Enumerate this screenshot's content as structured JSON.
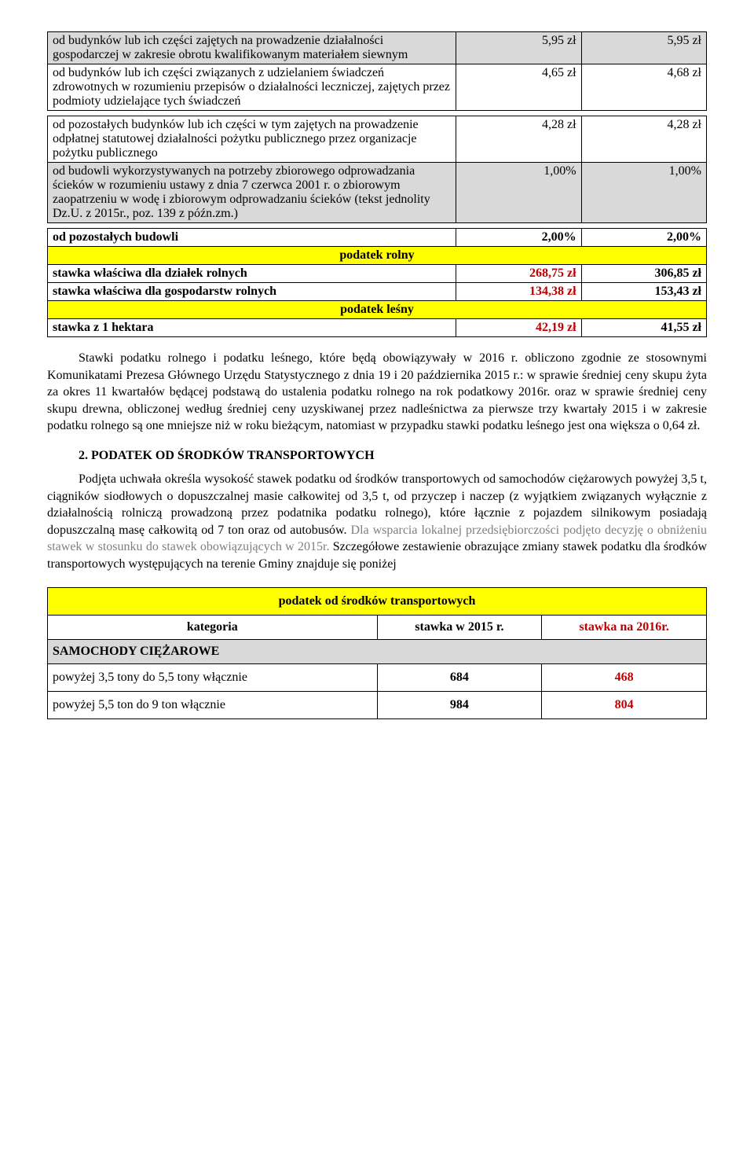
{
  "taxTable": {
    "rows": [
      {
        "label": "od budynków lub ich części zajętych na prowadzenie działalności gospodarczej w zakresie obrotu kwalifikowanym materiałem siewnym",
        "v1": "5,95 zł",
        "v2": "5,95 zł",
        "shaded": true
      },
      {
        "label": "od budynków lub ich części związanych z udzielaniem świadczeń zdrowotnych w rozumieniu przepisów o działalności leczniczej, zajętych przez podmioty udzielające tych świadczeń",
        "v1": "4,65 zł",
        "v2": "4,68 zł",
        "shaded": false
      },
      {
        "type": "spacer"
      },
      {
        "label": "od pozostałych budynków lub ich części w tym zajętych na prowadzenie odpłatnej statutowej działalności pożytku publicznego przez organizacje pożytku publicznego",
        "v1": "4,28 zł",
        "v2": "4,28 zł",
        "shaded": false
      },
      {
        "label": "od budowli wykorzystywanych na potrzeby zbiorowego odprowadzania ścieków w rozumieniu ustawy z dnia 7 czerwca 2001 r. o zbiorowym zaopatrzeniu w wodę i zbiorowym odprowadzaniu ścieków (tekst jednolity Dz.U. z 2015r., poz. 139 z późn.zm.)",
        "v1": "1,00%",
        "v2": "1,00%",
        "shaded": true
      },
      {
        "type": "spacer"
      },
      {
        "label": "od pozostałych budowli",
        "v1": "2,00%",
        "v2": "2,00%",
        "shaded": false,
        "bold": true
      },
      {
        "type": "section",
        "title": "podatek rolny"
      },
      {
        "label": "stawka właściwa dla działek rolnych",
        "v1": "268,75 zł",
        "v2": "306,85 zł",
        "shaded": false,
        "bold": true,
        "v1red": true
      },
      {
        "label": "stawka właściwa dla gospodarstw rolnych",
        "v1": "134,38 zł",
        "v2": "153,43 zł",
        "shaded": false,
        "bold": true,
        "v1red": true
      },
      {
        "type": "section",
        "title": "podatek leśny"
      },
      {
        "label": "stawka z 1 hektara",
        "v1": "42,19 zł",
        "v2": "41,55 zł",
        "shaded": false,
        "bold": true,
        "v1red": true
      }
    ]
  },
  "paragraph1": "Stawki podatku rolnego i podatku leśnego, które będą obowiązywały w 2016 r. obliczono zgodnie ze stosownymi Komunikatami Prezesa Głównego Urzędu Statystycznego z dnia 19 i 20 października 2015 r.: w sprawie średniej ceny skupu żyta za okres 11 kwartałów będącej podstawą do ustalenia podatku rolnego na rok podatkowy 2016r. oraz w sprawie średniej ceny skupu drewna, obliczonej według średniej ceny uzyskiwanej przez nadleśnictwa za pierwsze trzy kwartały 2015 i w zakresie podatku rolnego są one mniejsze niż w roku bieżącym, natomiast w przypadku stawki podatku leśnego jest ona większa o 0,64 zł.",
  "heading2": "2. PODATEK OD ŚRODKÓW TRANSPORTOWYCH",
  "paragraph2_part1": "Podjęta uchwała określa wysokość stawek podatku od środków transportowych od samochodów ciężarowych powyżej 3,5 t, ciągników siodłowych o dopuszczalnej masie całkowitej od 3,5 t, od przyczep i naczep (z wyjątkiem związanych wyłącznie z działalnością rolniczą prowadzoną przez podatnika podatku rolnego), które łącznie z pojazdem silnikowym posiadają dopuszczalną masę całkowitą od 7 ton oraz od autobusów. ",
  "paragraph2_part2_gray": "Dla wsparcia lokalnej przedsiębiorczości podjęto decyzję o obniżeniu stawek w stosunku do stawek obowiązujących w 2015r.",
  "paragraph2_part3": " Szczegółowe zestawienie obrazujące zmiany stawek podatku dla środków transportowych występujących na terenie Gminy znajduje się poniżej",
  "transportTable": {
    "title": "podatek od środków transportowych",
    "headers": {
      "cat": "kategoria",
      "v1": "stawka w 2015 r.",
      "v2": "stawka na 2016r."
    },
    "rows": [
      {
        "type": "group",
        "label": "SAMOCHODY CIĘŻAROWE"
      },
      {
        "label": "powyżej 3,5 tony do 5,5 tony włącznie",
        "v1": "684",
        "v2": "468"
      },
      {
        "label": "powyżej 5,5 ton do 9 ton włącznie",
        "v1": "984",
        "v2": "804"
      }
    ]
  }
}
